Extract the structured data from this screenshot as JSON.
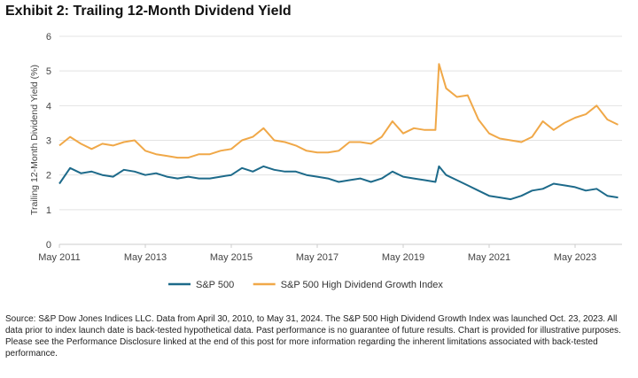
{
  "title": "Exhibit 2: Trailing 12-Month Dividend Yield",
  "source": "Source: S&P Dow Jones Indices LLC. Data from April 30, 2010, to May 31, 2024. The S&P 500 High Dividend Growth Index was launched Oct. 23, 2023. All data prior to index launch date is back-tested hypothetical data. Past performance is no guarantee of future results. Chart is provided for illustrative purposes. Please see the Performance Disclosure linked at the end of this post for more information regarding the inherent limitations associated with back-tested performance.",
  "chart_data": {
    "type": "line",
    "title": "",
    "xlabel": "",
    "ylabel": "Trailing 12-Month Dividend Yield (%)",
    "ylim": [
      0,
      6
    ],
    "yticks": [
      "0",
      "1",
      "2",
      "3",
      "4",
      "5",
      "6"
    ],
    "xticks": [
      "May 2011",
      "May 2013",
      "May 2015",
      "May 2017",
      "May 2019",
      "May 2021",
      "May 2023"
    ],
    "grid": true,
    "legend": "bottom",
    "x": [
      "2011-05",
      "2011-08",
      "2011-11",
      "2012-02",
      "2012-05",
      "2012-08",
      "2012-11",
      "2013-02",
      "2013-05",
      "2013-08",
      "2013-11",
      "2014-02",
      "2014-05",
      "2014-08",
      "2014-11",
      "2015-02",
      "2015-05",
      "2015-08",
      "2015-11",
      "2016-02",
      "2016-05",
      "2016-08",
      "2016-11",
      "2017-02",
      "2017-05",
      "2017-08",
      "2017-11",
      "2018-02",
      "2018-05",
      "2018-08",
      "2018-11",
      "2019-02",
      "2019-05",
      "2019-08",
      "2019-11",
      "2020-02",
      "2020-03",
      "2020-05",
      "2020-08",
      "2020-11",
      "2021-02",
      "2021-05",
      "2021-08",
      "2021-11",
      "2022-02",
      "2022-05",
      "2022-08",
      "2022-11",
      "2023-02",
      "2023-05",
      "2023-08",
      "2023-11",
      "2024-02",
      "2024-05"
    ],
    "series": [
      {
        "name": "S&P 500",
        "color": "#1d6a8a",
        "values": [
          1.75,
          2.2,
          2.05,
          2.1,
          2.0,
          1.95,
          2.15,
          2.1,
          2.0,
          2.05,
          1.95,
          1.9,
          1.95,
          1.9,
          1.9,
          1.95,
          2.0,
          2.2,
          2.1,
          2.25,
          2.15,
          2.1,
          2.1,
          2.0,
          1.95,
          1.9,
          1.8,
          1.85,
          1.9,
          1.8,
          1.9,
          2.1,
          1.95,
          1.9,
          1.85,
          1.8,
          2.25,
          2.0,
          1.85,
          1.7,
          1.55,
          1.4,
          1.35,
          1.3,
          1.4,
          1.55,
          1.6,
          1.75,
          1.7,
          1.65,
          1.55,
          1.6,
          1.4,
          1.35
        ]
      },
      {
        "name": "S&P 500 High Dividend Growth Index",
        "color": "#f0a848",
        "values": [
          2.85,
          3.1,
          2.9,
          2.75,
          2.9,
          2.85,
          2.95,
          3.0,
          2.7,
          2.6,
          2.55,
          2.5,
          2.5,
          2.6,
          2.6,
          2.7,
          2.75,
          3.0,
          3.1,
          3.35,
          3.0,
          2.95,
          2.85,
          2.7,
          2.65,
          2.65,
          2.7,
          2.95,
          2.95,
          2.9,
          3.1,
          3.55,
          3.2,
          3.35,
          3.3,
          3.3,
          5.2,
          4.5,
          4.25,
          4.3,
          3.6,
          3.2,
          3.05,
          3.0,
          2.95,
          3.1,
          3.55,
          3.3,
          3.5,
          3.65,
          3.75,
          4.0,
          3.6,
          3.45
        ]
      }
    ]
  }
}
